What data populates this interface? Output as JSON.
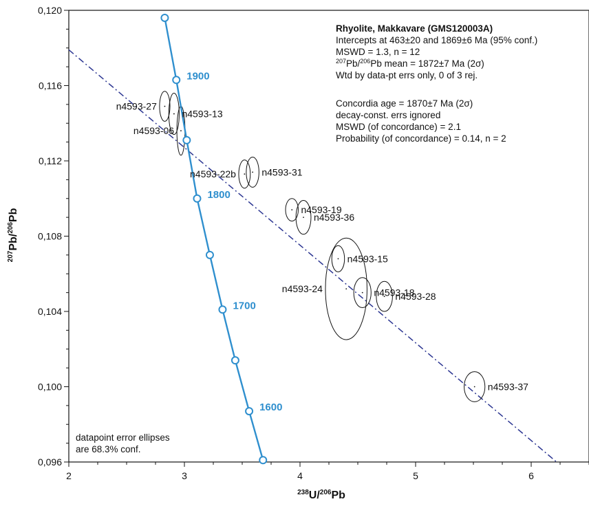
{
  "chart_data": {
    "type": "scatter",
    "title": "Rhyolite, Makkavare (GMS120003A)",
    "xlabel": "238U/206Pb",
    "ylabel": "207Pb/206Pb",
    "xlim": [
      2,
      6.5
    ],
    "ylim": [
      0.096,
      0.12
    ],
    "x_ticks": [
      2,
      3,
      4,
      5,
      6
    ],
    "x_tick_labels": [
      "2",
      "3",
      "4",
      "5",
      "6"
    ],
    "y_ticks": [
      0.096,
      0.1,
      0.104,
      0.108,
      0.112,
      0.116,
      0.12
    ],
    "y_tick_labels": [
      "0,096",
      "0,100",
      "0,104",
      "0,108",
      "0,112",
      "0,116",
      "0,120"
    ],
    "concordia": {
      "color": "#2f8fce",
      "points": [
        {
          "x": 2.83,
          "y": 0.1196
        },
        {
          "x": 2.93,
          "y": 0.1163,
          "age": "1900"
        },
        {
          "x": 3.02,
          "y": 0.1131
        },
        {
          "x": 3.11,
          "y": 0.11,
          "age": "1800"
        },
        {
          "x": 3.22,
          "y": 0.107
        },
        {
          "x": 3.33,
          "y": 0.1041,
          "age": "1700"
        },
        {
          "x": 3.44,
          "y": 0.1014
        },
        {
          "x": 3.56,
          "y": 0.0987,
          "age": "1600"
        },
        {
          "x": 3.68,
          "y": 0.0961
        }
      ]
    },
    "regression_line": {
      "color": "#2b3591",
      "from": {
        "x": 2.0,
        "y": 0.1179
      },
      "to": {
        "x": 6.22,
        "y": 0.096
      }
    },
    "samples": [
      {
        "name": "n4593-27",
        "x": 2.83,
        "y": 0.1149,
        "rx": 0.045,
        "ry": 0.0008,
        "label_side": "left"
      },
      {
        "name": "n4593-13",
        "x": 2.91,
        "y": 0.1145,
        "rx": 0.045,
        "ry": 0.0011,
        "label_side": "right"
      },
      {
        "name": "n4593-06",
        "x": 2.97,
        "y": 0.1136,
        "rx": 0.035,
        "ry": 0.0013,
        "label_side": "left"
      },
      {
        "name": "n4593-22b",
        "x": 3.52,
        "y": 0.1113,
        "rx": 0.05,
        "ry": 0.00075,
        "label_side": "left"
      },
      {
        "name": "n4593-31",
        "x": 3.59,
        "y": 0.1114,
        "rx": 0.055,
        "ry": 0.0008,
        "label_side": "right"
      },
      {
        "name": "n4593-19",
        "x": 3.93,
        "y": 0.1094,
        "rx": 0.055,
        "ry": 0.0006,
        "label_side": "right"
      },
      {
        "name": "n4593-36",
        "x": 4.03,
        "y": 0.109,
        "rx": 0.065,
        "ry": 0.0009,
        "label_side": "right"
      },
      {
        "name": "n4593-15",
        "x": 4.33,
        "y": 0.1068,
        "rx": 0.055,
        "ry": 0.0007,
        "label_side": "right"
      },
      {
        "name": "n4593-24",
        "x": 4.4,
        "y": 0.1052,
        "rx": 0.18,
        "ry": 0.0027,
        "label_side": "left"
      },
      {
        "name": "n4593-18",
        "x": 4.54,
        "y": 0.105,
        "rx": 0.075,
        "ry": 0.0008,
        "label_side": "right"
      },
      {
        "name": "n4593-28",
        "x": 4.73,
        "y": 0.1048,
        "rx": 0.07,
        "ry": 0.0008,
        "label_side": "right"
      },
      {
        "name": "n4593-37",
        "x": 5.51,
        "y": 0.1,
        "rx": 0.09,
        "ry": 0.0008,
        "label_side": "right"
      }
    ],
    "info_box": {
      "title": "Rhyolite, Makkavare (GMS120003A)",
      "lines": [
        "Intercepts at 463±20 and 1869±6 Ma (95% conf.)",
        "MSWD = 1.3, n = 12",
        "207Pb/206Pb mean = 1872±7 Ma (2σ)",
        "Wtd by data-pt errs only, 0 of 3 rej.",
        "",
        "Concordia age = 1870±7 Ma (2σ)",
        "decay-const. errs ignored",
        "MSWD (of concordance) = 2.1",
        "Probability (of concordance) = 0.14, n = 2"
      ]
    },
    "note": [
      "datapoint error ellipses",
      "are 68.3% conf."
    ],
    "grid": false
  }
}
